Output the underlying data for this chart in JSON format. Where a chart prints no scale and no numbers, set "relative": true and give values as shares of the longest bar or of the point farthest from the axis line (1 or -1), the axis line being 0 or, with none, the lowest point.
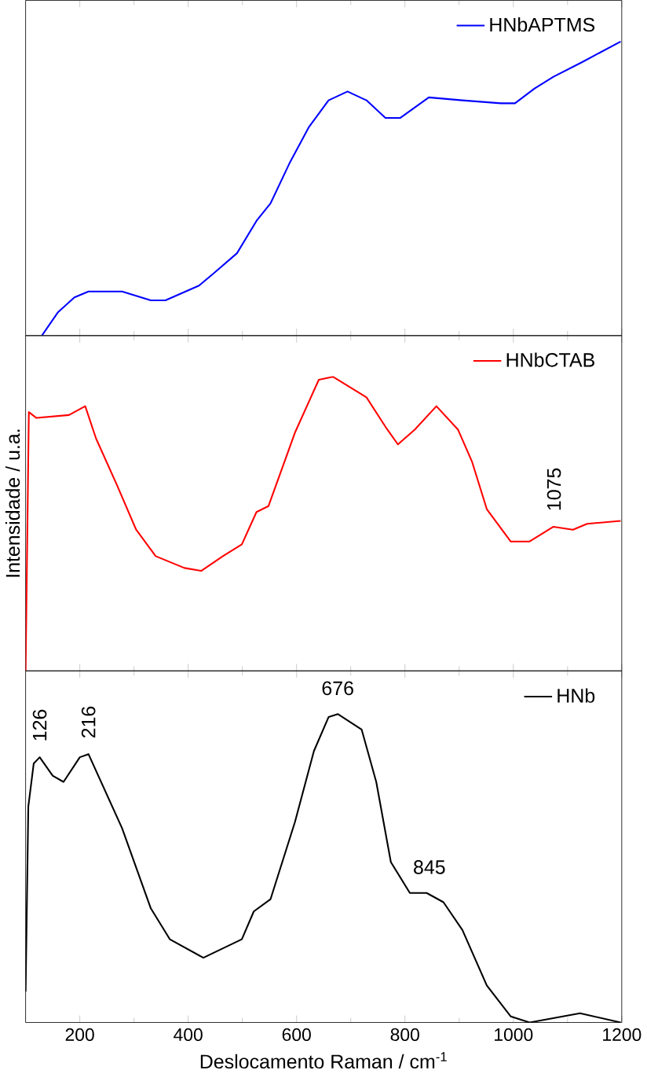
{
  "chart_data": [
    {
      "type": "line",
      "relative": true,
      "xlim": [
        100,
        1200
      ],
      "xticks": [
        200,
        400,
        600,
        800,
        1000,
        1200
      ],
      "tick_labels": false,
      "legend": "top right",
      "series": [
        {
          "name": "HNbAPTMS",
          "color": "#0000ff",
          "x": [
            130,
            160,
            190,
            216,
            278,
            331,
            358,
            420,
            446,
            490,
            526,
            552,
            588,
            623,
            659,
            694,
            729,
            764,
            791,
            844,
            906,
            977,
            1003,
            1039,
            1074,
            1127,
            1198
          ],
          "values": [
            0,
            0.08,
            0.13,
            0.15,
            0.15,
            0.12,
            0.12,
            0.17,
            0.21,
            0.28,
            0.39,
            0.45,
            0.59,
            0.71,
            0.8,
            0.83,
            0.8,
            0.74,
            0.74,
            0.81,
            0.8,
            0.79,
            0.79,
            0.84,
            0.88,
            0.93,
            1.0
          ]
        }
      ]
    },
    {
      "type": "line",
      "relative": true,
      "xlim": [
        100,
        1200
      ],
      "xticks": [
        200,
        400,
        600,
        800,
        1000,
        1200
      ],
      "tick_labels": false,
      "legend": "top right",
      "ylabel": "Intensidade / u.a.",
      "annotations": [
        {
          "text": "1075",
          "x": 1075,
          "y": 0.49
        }
      ],
      "series": [
        {
          "name": "HNbCTAB",
          "color": "#ff0000",
          "x": [
            100,
            106,
            120,
            180,
            210,
            230,
            269,
            304,
            340,
            393,
            424,
            464,
            499,
            526,
            548,
            597,
            641,
            667,
            729,
            764,
            787,
            818,
            858,
            898,
            924,
            951,
            995,
            1030,
            1074,
            1110,
            1136,
            1198
          ],
          "values": [
            0,
            0.88,
            0.86,
            0.87,
            0.9,
            0.79,
            0.63,
            0.48,
            0.39,
            0.35,
            0.34,
            0.39,
            0.43,
            0.54,
            0.56,
            0.81,
            0.99,
            1.0,
            0.93,
            0.83,
            0.77,
            0.82,
            0.9,
            0.82,
            0.71,
            0.55,
            0.44,
            0.44,
            0.49,
            0.48,
            0.5,
            0.51
          ]
        }
      ]
    },
    {
      "type": "line",
      "relative": true,
      "xlim": [
        100,
        1200
      ],
      "xticks": [
        200,
        400,
        600,
        800,
        1000,
        1200
      ],
      "tick_labels": "x",
      "legend": "top right",
      "xlabel": "Deslocamento Raman / cm$^{-1}$",
      "annotations": [
        {
          "text": "126",
          "x": 126,
          "y": 0.86
        },
        {
          "text": "216",
          "x": 216,
          "y": 0.87
        },
        {
          "text": "676",
          "x": 676,
          "y": 1.0
        },
        {
          "text": "845",
          "x": 845,
          "y": 0.42
        }
      ],
      "series": [
        {
          "name": "HNb",
          "color": "#000000",
          "x": [
            100,
            105,
            115,
            126,
            150,
            170,
            200,
            216,
            278,
            331,
            366,
            428,
            499,
            521,
            552,
            597,
            632,
            659,
            676,
            720,
            747,
            774,
            809,
            840,
            871,
            906,
            951,
            995,
            1030,
            1123,
            1198
          ],
          "values": [
            0.1,
            0.7,
            0.84,
            0.86,
            0.8,
            0.78,
            0.86,
            0.87,
            0.63,
            0.37,
            0.27,
            0.21,
            0.27,
            0.36,
            0.4,
            0.65,
            0.88,
            0.99,
            1.0,
            0.95,
            0.78,
            0.52,
            0.42,
            0.42,
            0.39,
            0.3,
            0.12,
            0.02,
            0,
            0.03,
            0
          ]
        }
      ]
    }
  ]
}
